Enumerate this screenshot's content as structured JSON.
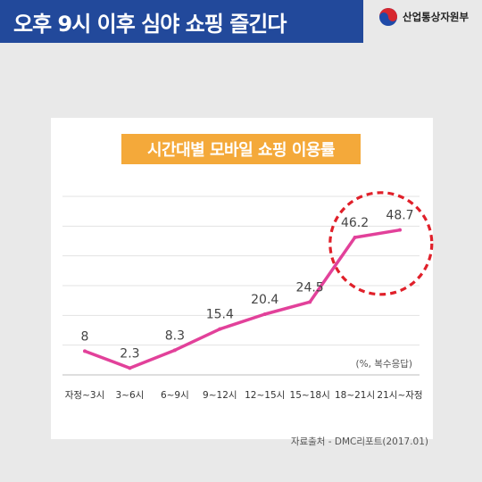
{
  "header": {
    "title": "오후 9시 이후 심야 쇼핑 즐긴다",
    "ministry": "산업통상자원부"
  },
  "note": "(%, 복수응답)",
  "source": "자료출처 - DMC리포트(2017.01)",
  "colors": {
    "title_bar": "#22499b",
    "line": "#e2419a",
    "chart_title_bg": "#f4a93a",
    "highlight_circle": "#e0202a"
  },
  "chart_data": {
    "type": "line",
    "title": "시간대별 모바일 쇼핑 이용률",
    "categories": [
      "자정~3시",
      "3~6시",
      "6~9시",
      "9~12시",
      "12~15시",
      "15~18시",
      "18~21시",
      "21시~자정"
    ],
    "values": [
      8,
      2.3,
      8.3,
      15.4,
      20.4,
      24.5,
      46.2,
      48.7
    ],
    "value_labels": [
      "8",
      "2.3",
      "8.3",
      "15.4",
      "20.4",
      "24.5",
      "46.2",
      "48.7"
    ],
    "ylim": [
      0,
      60
    ],
    "grid": true,
    "highlight": [
      "18~21시",
      "21시~자정"
    ]
  }
}
